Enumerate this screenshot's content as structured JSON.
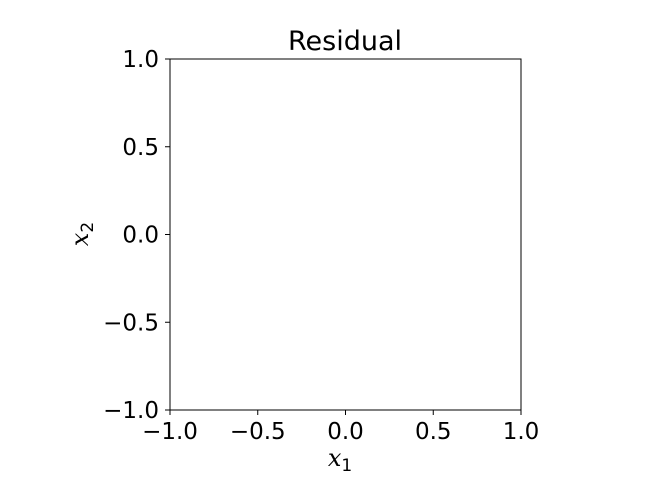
{
  "chart_data": {
    "type": "heatmap",
    "title": "Residual",
    "xlabel": "x",
    "xlabel_sub": "1",
    "ylabel": "x",
    "ylabel_sub": "2",
    "xlim": [
      -1.0,
      1.0
    ],
    "ylim": [
      -1.0,
      1.0
    ],
    "x_ticks": [
      -1.0,
      -0.5,
      0.0,
      0.5,
      1.0
    ],
    "x_tick_labels": [
      "−1.0",
      "−0.5",
      "0.0",
      "0.5",
      "1.0"
    ],
    "y_ticks": [
      -1.0,
      -0.5,
      0.0,
      0.5,
      1.0
    ],
    "y_tick_labels": [
      "−1.0",
      "−0.5",
      "0.0",
      "0.5",
      "1.0"
    ],
    "grid": false,
    "legend": "none",
    "values": [],
    "colors": {
      "frame": "#000000",
      "background": "#ffffff"
    }
  }
}
